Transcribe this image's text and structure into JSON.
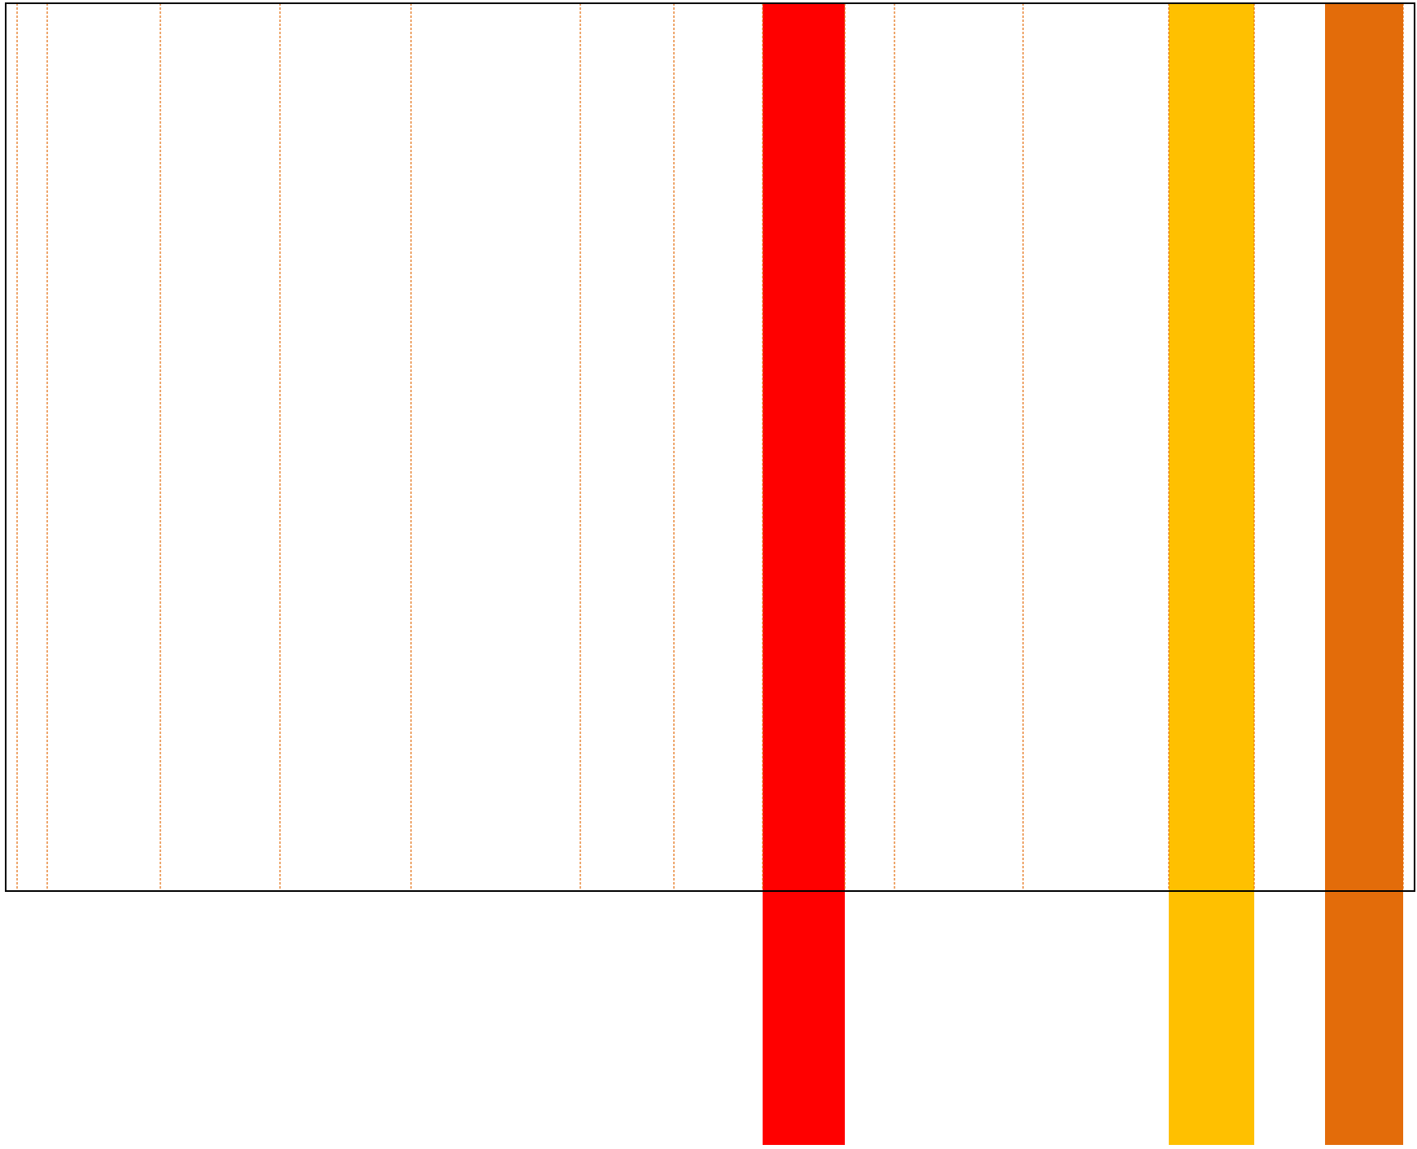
{
  "colors": {
    "background": "#ffffff",
    "frame": "#000000",
    "guide_line": "#e36c0a",
    "band_red": "#ff0000",
    "band_yellow": "#ffc000",
    "band_orange": "#e36c0a"
  },
  "guide_lines_count": 14,
  "bands": [
    {
      "name": "red-band",
      "color_key": "band_red"
    },
    {
      "name": "yellow-band",
      "color_key": "band_yellow"
    },
    {
      "name": "orange-band",
      "color_key": "band_orange"
    }
  ]
}
